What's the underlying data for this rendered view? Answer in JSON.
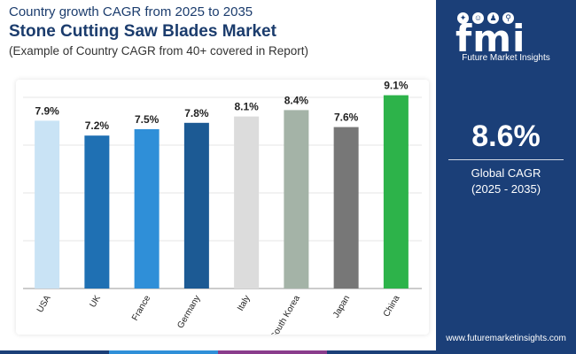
{
  "header": {
    "subtitle_top": "Country growth CAGR from 2025 to 2035",
    "title": "Stone Cutting Saw Blades Market",
    "subtitle_bottom": "(Example of Country CAGR from 40+ covered in Report)"
  },
  "sidebar": {
    "logo_letters": "fmi",
    "logo_name": "Future Market Insights",
    "cagr_value": "8.6%",
    "cagr_label": "Global CAGR",
    "cagr_range": "(2025 - 2035)",
    "website": "www.futuremarketinsights.com",
    "icons": [
      "lightbulb-icon",
      "smile-icon",
      "people-icon",
      "search-icon"
    ]
  },
  "colors": {
    "brand_navy": "#1b3f78",
    "title_navy": "#1b3c6d",
    "strip": [
      "#1b3f78",
      "#2f8fd8",
      "#8a3c8c",
      "#1b3f78"
    ]
  },
  "chart_data": {
    "type": "bar",
    "categories": [
      "USA",
      "UK",
      "France",
      "Germany",
      "Italy",
      "South Korea",
      "Japan",
      "China"
    ],
    "values": [
      7.9,
      7.2,
      7.5,
      7.8,
      8.1,
      8.4,
      7.6,
      9.1
    ],
    "labels": [
      "7.9%",
      "7.2%",
      "7.5%",
      "7.8%",
      "8.1%",
      "8.4%",
      "7.6%",
      "9.1%"
    ],
    "colors": [
      "#c9e3f5",
      "#1f70b3",
      "#2f8fd8",
      "#1c5a94",
      "#dcdcdc",
      "#a4b3a7",
      "#777777",
      "#2db34a"
    ],
    "ylim": [
      0,
      9.5
    ],
    "grid": true,
    "xlabel": "",
    "ylabel": ""
  }
}
